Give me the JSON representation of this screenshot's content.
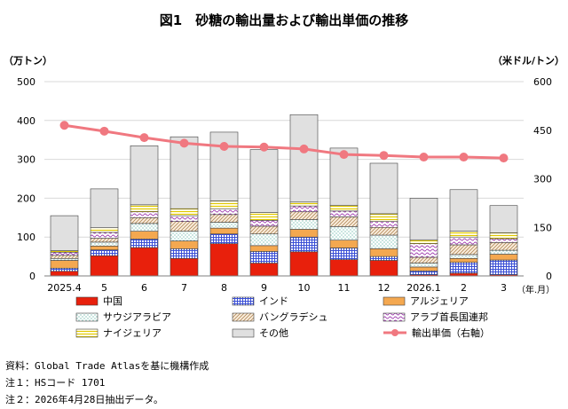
{
  "chart_data": {
    "type": "bar",
    "stacked": true,
    "title": "図1　砂糖の輸出量および輸出単価の推移",
    "y_left_unit": "（万トン）",
    "y_right_unit": "（米ドル/トン）",
    "x_unit": "（年.月）",
    "ylim_left": [
      0,
      500
    ],
    "ylim_right": [
      0,
      600
    ],
    "y_left_ticks": [
      "0",
      "100",
      "200",
      "300",
      "400",
      "500"
    ],
    "y_right_ticks": [
      "0",
      "150",
      "300",
      "450",
      "600"
    ],
    "categories": [
      "2025.4",
      "5",
      "6",
      "7",
      "8",
      "9",
      "10",
      "11",
      "12",
      "2026.1",
      "2",
      "3"
    ],
    "series": [
      {
        "name": "中国",
        "color": "#e8200c",
        "values": [
          12,
          52,
          73,
          45,
          83,
          33,
          62,
          42,
          40,
          3,
          7,
          3
        ]
      },
      {
        "name": "インド",
        "color": "#3a4fd6",
        "values": [
          8,
          15,
          22,
          25,
          25,
          30,
          38,
          30,
          10,
          10,
          28,
          38
        ]
      },
      {
        "name": "アルジェリア",
        "color": "#f4a850",
        "values": [
          20,
          10,
          20,
          20,
          15,
          15,
          20,
          20,
          20,
          10,
          10,
          15
        ]
      },
      {
        "name": "サウジアラビア",
        "color": "#6fc4b4",
        "values": [
          5,
          10,
          20,
          25,
          15,
          30,
          25,
          35,
          35,
          10,
          10,
          10
        ]
      },
      {
        "name": "バングラデシュ",
        "color": "#c8a888",
        "values": [
          8,
          10,
          15,
          25,
          20,
          20,
          20,
          25,
          20,
          15,
          25,
          20
        ]
      },
      {
        "name": "アラブ首長国連邦",
        "color": "#a03bb0",
        "values": [
          8,
          15,
          15,
          15,
          15,
          15,
          15,
          15,
          15,
          35,
          20,
          10
        ]
      },
      {
        "name": "ナイジェリア",
        "color": "#f0e040",
        "values": [
          4,
          12,
          18,
          18,
          20,
          20,
          10,
          15,
          20,
          10,
          15,
          15
        ]
      },
      {
        "name": "その他",
        "color": "#e0e0e0",
        "values": [
          90,
          100,
          152,
          185,
          177,
          162,
          225,
          147,
          130,
          107,
          107,
          70
        ]
      }
    ],
    "line": {
      "name": "輸出単価（右軸）",
      "color": "#f07880",
      "axis": "right",
      "values": [
        465,
        447,
        427,
        410,
        400,
        398,
        392,
        375,
        372,
        367,
        367,
        364
      ]
    }
  },
  "notes": [
    "資料：Global Trade Atlasを基に機構作成",
    "注１：HSコード 1701",
    "注２：2026年4月28日抽出データ。"
  ]
}
